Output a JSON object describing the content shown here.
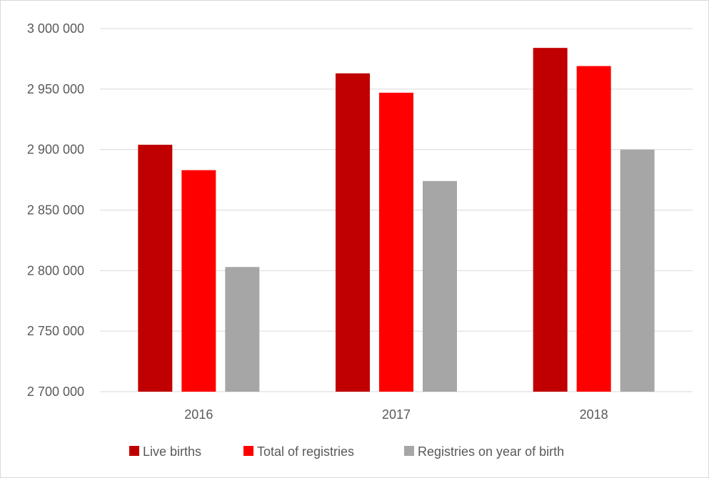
{
  "chart_data": {
    "type": "bar",
    "categories": [
      "2016",
      "2017",
      "2018"
    ],
    "series": [
      {
        "name": "Live births",
        "color": "#c00000",
        "values": [
          2904000,
          2963000,
          2984000
        ]
      },
      {
        "name": "Total of registries",
        "color": "#ff0000",
        "values": [
          2883000,
          2947000,
          2969000
        ]
      },
      {
        "name": "Registries on year of birth",
        "color": "#a6a6a6",
        "values": [
          2803000,
          2874000,
          2900000
        ]
      }
    ],
    "ylim": [
      2700000,
      3000000
    ],
    "yticks": [
      2700000,
      2750000,
      2800000,
      2850000,
      2900000,
      2950000,
      3000000
    ],
    "ytick_labels": [
      "2 700 000",
      "2 750 000",
      "2 800 000",
      "2 850 000",
      "2 900 000",
      "2 950 000",
      "3 000 000"
    ],
    "grid": true,
    "legend_position": "bottom",
    "title": "",
    "xlabel": "",
    "ylabel": ""
  }
}
